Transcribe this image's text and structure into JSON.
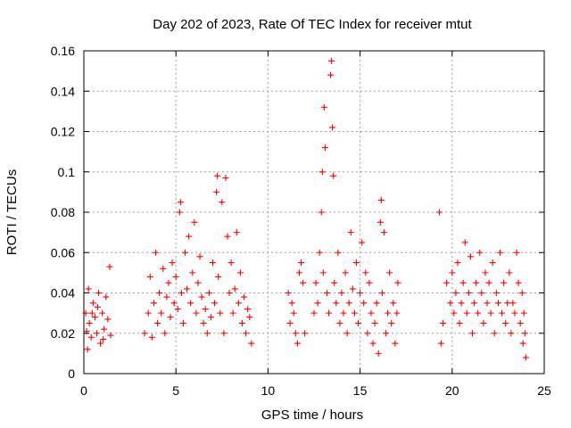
{
  "chart_data": {
    "type": "scatter",
    "title": "Day 202 of 2023, Rate Of TEC Index for receiver mtut",
    "xlabel": "GPS time / hours",
    "ylabel": "ROTI / TECUs",
    "xlim": [
      0,
      25
    ],
    "ylim": [
      0,
      0.16
    ],
    "xticks": [
      "0",
      "5",
      "10",
      "15",
      "20",
      "25"
    ],
    "yticks": [
      "0",
      "0.02",
      "0.04",
      "0.06",
      "0.08",
      "0.1",
      "0.12",
      "0.14",
      "0.16"
    ],
    "grid": true,
    "marker": "+",
    "color": "#ff0000",
    "series": [
      {
        "points": [
          [
            0.1,
            0.03
          ],
          [
            0.2,
            0.012
          ],
          [
            0.25,
            0.042
          ],
          [
            0.3,
            0.025
          ],
          [
            0.4,
            0.018
          ],
          [
            0.5,
            0.035
          ],
          [
            0.6,
            0.028
          ],
          [
            0.7,
            0.02
          ],
          [
            0.8,
            0.04
          ],
          [
            0.9,
            0.015
          ],
          [
            1.0,
            0.03
          ],
          [
            1.1,
            0.022
          ],
          [
            1.2,
            0.038
          ],
          [
            1.3,
            0.027
          ],
          [
            1.4,
            0.053
          ],
          [
            1.45,
            0.019
          ],
          [
            0.15,
            0.021
          ],
          [
            0.45,
            0.03
          ],
          [
            0.75,
            0.033
          ],
          [
            1.05,
            0.017
          ],
          [
            3.3,
            0.02
          ],
          [
            3.5,
            0.03
          ],
          [
            3.6,
            0.048
          ],
          [
            3.7,
            0.018
          ],
          [
            3.8,
            0.035
          ],
          [
            3.9,
            0.06
          ],
          [
            4.0,
            0.025
          ],
          [
            4.1,
            0.04
          ],
          [
            4.2,
            0.03
          ],
          [
            4.3,
            0.052
          ],
          [
            4.4,
            0.02
          ],
          [
            4.5,
            0.038
          ],
          [
            4.6,
            0.045
          ],
          [
            4.7,
            0.028
          ],
          [
            4.8,
            0.055
          ],
          [
            4.9,
            0.035
          ],
          [
            5.0,
            0.048
          ],
          [
            5.1,
            0.032
          ],
          [
            5.2,
            0.08
          ],
          [
            5.25,
            0.085
          ],
          [
            5.3,
            0.04
          ],
          [
            5.4,
            0.025
          ],
          [
            5.5,
            0.06
          ],
          [
            5.6,
            0.042
          ],
          [
            5.7,
            0.068
          ],
          [
            5.8,
            0.035
          ],
          [
            5.9,
            0.05
          ],
          [
            6.0,
            0.075
          ],
          [
            6.1,
            0.03
          ],
          [
            6.2,
            0.045
          ],
          [
            6.3,
            0.058
          ],
          [
            6.4,
            0.038
          ],
          [
            6.5,
            0.025
          ],
          [
            6.6,
            0.032
          ],
          [
            6.7,
            0.02
          ],
          [
            6.8,
            0.04
          ],
          [
            6.9,
            0.028
          ],
          [
            7.0,
            0.055
          ],
          [
            7.1,
            0.035
          ],
          [
            7.2,
            0.09
          ],
          [
            7.25,
            0.098
          ],
          [
            7.3,
            0.048
          ],
          [
            7.4,
            0.03
          ],
          [
            7.5,
            0.085
          ],
          [
            7.6,
            0.02
          ],
          [
            7.7,
            0.097
          ],
          [
            7.8,
            0.068
          ],
          [
            7.9,
            0.04
          ],
          [
            8.0,
            0.055
          ],
          [
            8.1,
            0.03
          ],
          [
            8.2,
            0.042
          ],
          [
            8.3,
            0.07
          ],
          [
            8.4,
            0.035
          ],
          [
            8.5,
            0.05
          ],
          [
            8.6,
            0.025
          ],
          [
            8.7,
            0.038
          ],
          [
            8.8,
            0.02
          ],
          [
            8.9,
            0.032
          ],
          [
            9.0,
            0.028
          ],
          [
            9.1,
            0.015
          ],
          [
            11.1,
            0.04
          ],
          [
            11.2,
            0.025
          ],
          [
            11.3,
            0.035
          ],
          [
            11.4,
            0.03
          ],
          [
            11.5,
            0.02
          ],
          [
            11.6,
            0.015
          ],
          [
            11.7,
            0.05
          ],
          [
            11.8,
            0.055
          ],
          [
            11.9,
            0.045
          ],
          [
            12.0,
            0.02
          ],
          [
            12.5,
            0.03
          ],
          [
            12.6,
            0.045
          ],
          [
            12.7,
            0.035
          ],
          [
            12.8,
            0.06
          ],
          [
            12.9,
            0.08
          ],
          [
            12.95,
            0.1
          ],
          [
            13.0,
            0.05
          ],
          [
            13.05,
            0.132
          ],
          [
            13.1,
            0.112
          ],
          [
            13.2,
            0.04
          ],
          [
            13.3,
            0.03
          ],
          [
            13.4,
            0.148
          ],
          [
            13.45,
            0.155
          ],
          [
            13.5,
            0.122
          ],
          [
            13.55,
            0.098
          ],
          [
            13.6,
            0.045
          ],
          [
            13.7,
            0.035
          ],
          [
            13.8,
            0.06
          ],
          [
            13.9,
            0.025
          ],
          [
            14.0,
            0.04
          ],
          [
            14.1,
            0.03
          ],
          [
            14.2,
            0.05
          ],
          [
            14.3,
            0.02
          ],
          [
            14.4,
            0.035
          ],
          [
            14.5,
            0.07
          ],
          [
            14.6,
            0.042
          ],
          [
            14.7,
            0.03
          ],
          [
            14.8,
            0.055
          ],
          [
            14.9,
            0.025
          ],
          [
            15.0,
            0.04
          ],
          [
            15.1,
            0.065
          ],
          [
            15.2,
            0.035
          ],
          [
            15.3,
            0.05
          ],
          [
            15.4,
            0.02
          ],
          [
            15.5,
            0.045
          ],
          [
            15.6,
            0.03
          ],
          [
            15.7,
            0.015
          ],
          [
            15.8,
            0.025
          ],
          [
            15.9,
            0.035
          ],
          [
            16.0,
            0.01
          ],
          [
            16.1,
            0.075
          ],
          [
            16.15,
            0.086
          ],
          [
            16.2,
            0.04
          ],
          [
            16.3,
            0.07
          ],
          [
            16.4,
            0.02
          ],
          [
            16.5,
            0.03
          ],
          [
            16.6,
            0.05
          ],
          [
            16.7,
            0.025
          ],
          [
            16.8,
            0.035
          ],
          [
            16.9,
            0.015
          ],
          [
            17.0,
            0.03
          ],
          [
            17.05,
            0.045
          ],
          [
            19.3,
            0.08
          ],
          [
            19.4,
            0.015
          ],
          [
            19.5,
            0.025
          ],
          [
            19.7,
            0.045
          ],
          [
            19.9,
            0.035
          ],
          [
            20.0,
            0.05
          ],
          [
            20.1,
            0.03
          ],
          [
            20.2,
            0.04
          ],
          [
            20.3,
            0.055
          ],
          [
            20.4,
            0.025
          ],
          [
            20.5,
            0.035
          ],
          [
            20.6,
            0.045
          ],
          [
            20.7,
            0.065
          ],
          [
            20.8,
            0.03
          ],
          [
            20.9,
            0.04
          ],
          [
            21.0,
            0.058
          ],
          [
            21.1,
            0.02
          ],
          [
            21.2,
            0.035
          ],
          [
            21.3,
            0.045
          ],
          [
            21.4,
            0.03
          ],
          [
            21.5,
            0.06
          ],
          [
            21.6,
            0.04
          ],
          [
            21.7,
            0.025
          ],
          [
            21.8,
            0.05
          ],
          [
            21.9,
            0.035
          ],
          [
            22.0,
            0.045
          ],
          [
            22.1,
            0.03
          ],
          [
            22.2,
            0.055
          ],
          [
            22.3,
            0.02
          ],
          [
            22.4,
            0.04
          ],
          [
            22.5,
            0.035
          ],
          [
            22.6,
            0.06
          ],
          [
            22.7,
            0.03
          ],
          [
            22.8,
            0.045
          ],
          [
            22.9,
            0.025
          ],
          [
            23.0,
            0.035
          ],
          [
            23.1,
            0.05
          ],
          [
            23.2,
            0.02
          ],
          [
            23.3,
            0.035
          ],
          [
            23.4,
            0.03
          ],
          [
            23.5,
            0.06
          ],
          [
            23.6,
            0.045
          ],
          [
            23.7,
            0.025
          ],
          [
            23.8,
            0.04
          ],
          [
            23.85,
            0.015
          ],
          [
            23.9,
            0.03
          ],
          [
            24.0,
            0.008
          ],
          [
            23.95,
            0.02
          ]
        ]
      }
    ]
  }
}
